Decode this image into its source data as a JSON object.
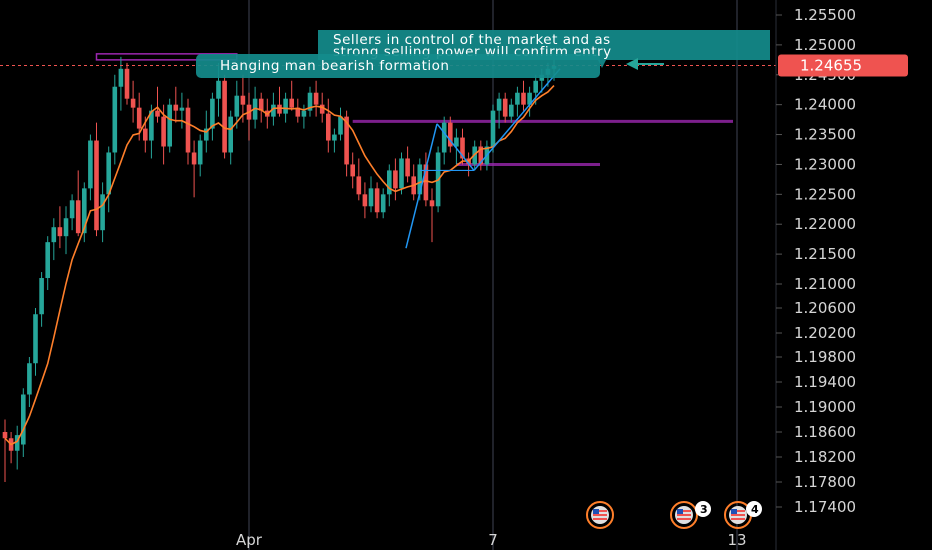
{
  "chart_data": {
    "type": "candlestick",
    "title": "",
    "xlabel": "",
    "ylabel": "",
    "ylim": [
      1.172,
      1.257
    ],
    "y_ticks": [
      1.255,
      1.25,
      1.245,
      1.24,
      1.235,
      1.23,
      1.225,
      1.22,
      1.215,
      1.21,
      1.206,
      1.202,
      1.198,
      1.194,
      1.19,
      1.186,
      1.182,
      1.178,
      1.174
    ],
    "y_tick_labels": [
      "1.25500",
      "1.25000",
      "1.24500",
      "1.24000",
      "1.23500",
      "1.23000",
      "1.22500",
      "1.22000",
      "1.21500",
      "1.21000",
      "1.20600",
      "1.20200",
      "1.19800",
      "1.19400",
      "1.19000",
      "1.18600",
      "1.18200",
      "1.17800",
      "1.17400"
    ],
    "x_ticks": [
      {
        "label": "Apr",
        "index": 40
      },
      {
        "label": "7",
        "index": 80
      },
      {
        "label": "13",
        "index": 120
      }
    ],
    "last_price": "1.24655",
    "last_price_value": 1.24655,
    "colors": {
      "up": "#26a69a",
      "down": "#ef5350",
      "ma": "#ff7f2a",
      "trend": "#2196f3",
      "zone": "#9c27b0",
      "note": "#138c8c",
      "grid": "#2a2e39",
      "axis_text": "#d6d6d6"
    },
    "candles": [
      [
        1.186,
        1.188,
        1.178,
        1.185
      ],
      [
        1.185,
        1.186,
        1.181,
        1.183
      ],
      [
        1.183,
        1.187,
        1.18,
        1.1855
      ],
      [
        1.184,
        1.193,
        1.182,
        1.192
      ],
      [
        1.192,
        1.198,
        1.19,
        1.197
      ],
      [
        1.197,
        1.206,
        1.195,
        1.205
      ],
      [
        1.205,
        1.212,
        1.203,
        1.211
      ],
      [
        1.211,
        1.218,
        1.209,
        1.217
      ],
      [
        1.217,
        1.221,
        1.214,
        1.2195
      ],
      [
        1.2195,
        1.223,
        1.216,
        1.218
      ],
      [
        1.218,
        1.223,
        1.215,
        1.221
      ],
      [
        1.221,
        1.225,
        1.219,
        1.224
      ],
      [
        1.224,
        1.229,
        1.218,
        1.2185
      ],
      [
        1.2185,
        1.227,
        1.217,
        1.226
      ],
      [
        1.226,
        1.235,
        1.224,
        1.234
      ],
      [
        1.234,
        1.237,
        1.218,
        1.219
      ],
      [
        1.219,
        1.227,
        1.217,
        1.225
      ],
      [
        1.225,
        1.233,
        1.222,
        1.232
      ],
      [
        1.232,
        1.245,
        1.23,
        1.243
      ],
      [
        1.243,
        1.248,
        1.239,
        1.246
      ],
      [
        1.246,
        1.247,
        1.24,
        1.241
      ],
      [
        1.241,
        1.244,
        1.237,
        1.2395
      ],
      [
        1.2395,
        1.242,
        1.234,
        1.236
      ],
      [
        1.236,
        1.238,
        1.232,
        1.234
      ],
      [
        1.234,
        1.24,
        1.231,
        1.239
      ],
      [
        1.239,
        1.243,
        1.237,
        1.238
      ],
      [
        1.238,
        1.24,
        1.23,
        1.233
      ],
      [
        1.233,
        1.241,
        1.232,
        1.24
      ],
      [
        1.24,
        1.243,
        1.237,
        1.239
      ],
      [
        1.239,
        1.242,
        1.236,
        1.2395
      ],
      [
        1.2395,
        1.241,
        1.23,
        1.232
      ],
      [
        1.232,
        1.234,
        1.2245,
        1.23
      ],
      [
        1.23,
        1.235,
        1.228,
        1.234
      ],
      [
        1.234,
        1.239,
        1.232,
        1.236
      ],
      [
        1.236,
        1.242,
        1.234,
        1.241
      ],
      [
        1.241,
        1.247,
        1.238,
        1.244
      ],
      [
        1.244,
        1.245,
        1.231,
        1.232
      ],
      [
        1.232,
        1.239,
        1.23,
        1.238
      ],
      [
        1.238,
        1.244,
        1.236,
        1.2415
      ],
      [
        1.2415,
        1.245,
        1.237,
        1.24
      ],
      [
        1.24,
        1.242,
        1.234,
        1.2375
      ],
      [
        1.2375,
        1.243,
        1.236,
        1.241
      ],
      [
        1.241,
        1.242,
        1.237,
        1.239
      ],
      [
        1.239,
        1.241,
        1.236,
        1.238
      ],
      [
        1.238,
        1.242,
        1.2365,
        1.24
      ],
      [
        1.24,
        1.243,
        1.238,
        1.2385
      ],
      [
        1.2385,
        1.242,
        1.237,
        1.241
      ],
      [
        1.241,
        1.244,
        1.239,
        1.2395
      ],
      [
        1.2395,
        1.241,
        1.237,
        1.238
      ],
      [
        1.238,
        1.24,
        1.236,
        1.239
      ],
      [
        1.239,
        1.243,
        1.238,
        1.242
      ],
      [
        1.242,
        1.244,
        1.238,
        1.24
      ],
      [
        1.24,
        1.242,
        1.237,
        1.2385
      ],
      [
        1.2385,
        1.241,
        1.232,
        1.234
      ],
      [
        1.234,
        1.236,
        1.232,
        1.235
      ],
      [
        1.235,
        1.2395,
        1.234,
        1.238
      ],
      [
        1.238,
        1.239,
        1.228,
        1.23
      ],
      [
        1.23,
        1.232,
        1.226,
        1.228
      ],
      [
        1.228,
        1.231,
        1.224,
        1.225
      ],
      [
        1.225,
        1.227,
        1.221,
        1.223
      ],
      [
        1.223,
        1.228,
        1.222,
        1.226
      ],
      [
        1.226,
        1.227,
        1.221,
        1.222
      ],
      [
        1.222,
        1.226,
        1.221,
        1.225
      ],
      [
        1.225,
        1.23,
        1.223,
        1.229
      ],
      [
        1.229,
        1.231,
        1.224,
        1.226
      ],
      [
        1.226,
        1.232,
        1.225,
        1.231
      ],
      [
        1.231,
        1.233,
        1.227,
        1.228
      ],
      [
        1.228,
        1.23,
        1.224,
        1.225
      ],
      [
        1.225,
        1.231,
        1.224,
        1.23
      ],
      [
        1.23,
        1.232,
        1.223,
        1.224
      ],
      [
        1.224,
        1.226,
        1.217,
        1.223
      ],
      [
        1.223,
        1.233,
        1.222,
        1.232
      ],
      [
        1.232,
        1.238,
        1.23,
        1.237
      ],
      [
        1.237,
        1.238,
        1.232,
        1.233
      ],
      [
        1.233,
        1.236,
        1.23,
        1.2345
      ],
      [
        1.2345,
        1.236,
        1.23,
        1.231
      ],
      [
        1.231,
        1.232,
        1.228,
        1.23
      ],
      [
        1.23,
        1.234,
        1.229,
        1.233
      ],
      [
        1.233,
        1.234,
        1.229,
        1.23
      ],
      [
        1.23,
        1.234,
        1.229,
        1.233
      ],
      [
        1.233,
        1.24,
        1.232,
        1.239
      ],
      [
        1.239,
        1.242,
        1.236,
        1.241
      ],
      [
        1.241,
        1.242,
        1.237,
        1.238
      ],
      [
        1.238,
        1.241,
        1.237,
        1.24
      ],
      [
        1.24,
        1.243,
        1.238,
        1.242
      ],
      [
        1.242,
        1.244,
        1.239,
        1.24
      ],
      [
        1.24,
        1.243,
        1.238,
        1.242
      ],
      [
        1.242,
        1.245,
        1.24,
        1.244
      ],
      [
        1.244,
        1.246,
        1.242,
        1.245
      ],
      [
        1.245,
        1.247,
        1.243,
        1.246
      ],
      [
        1.246,
        1.248,
        1.244,
        1.2465
      ]
    ]
  },
  "axis": {
    "y_labels": [
      "1.25500",
      "1.25000",
      "1.24500",
      "1.24000",
      "1.23500",
      "1.23000",
      "1.22500",
      "1.22000",
      "1.21500",
      "1.21000",
      "1.20600",
      "1.20200",
      "1.19800",
      "1.19400",
      "1.19000",
      "1.18600",
      "1.18200",
      "1.17800",
      "1.17400"
    ],
    "x_labels": [
      "Apr",
      "7",
      "13"
    ]
  },
  "annotations": {
    "note_top_line1": "Sellers in control of the market and as",
    "note_top_line2": "strong selling power will confirm entry",
    "note_hanging": "Hanging man bearish formation"
  },
  "price_badge": "1.24655",
  "events": {
    "badge_a": "3",
    "badge_b": "4"
  }
}
